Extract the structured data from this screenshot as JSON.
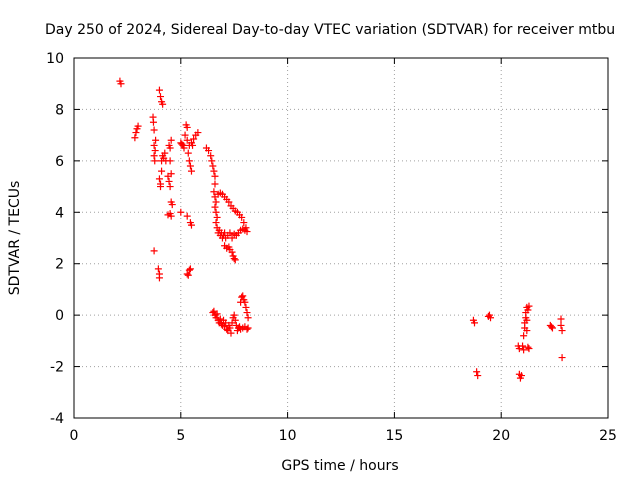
{
  "chart_data": {
    "type": "scatter",
    "title": "Day 250 of 2024, Sidereal Day-to-day VTEC variation (SDTVAR) for receiver mtbu",
    "xlabel": "GPS time / hours",
    "ylabel": "SDTVAR / TECUs",
    "xlim": [
      0,
      25
    ],
    "ylim": [
      -4,
      10
    ],
    "xticks": [
      0,
      5,
      10,
      15,
      20,
      25
    ],
    "yticks": [
      -4,
      -2,
      0,
      2,
      4,
      6,
      8,
      10
    ],
    "grid": true,
    "marker": "plus",
    "color": "#ff0000",
    "series": [
      {
        "name": "SDTVAR",
        "points": [
          [
            2.15,
            9.1
          ],
          [
            2.2,
            9.0
          ],
          [
            2.85,
            6.9
          ],
          [
            2.9,
            7.1
          ],
          [
            2.95,
            7.25
          ],
          [
            3.0,
            7.35
          ],
          [
            3.7,
            7.7
          ],
          [
            3.72,
            7.5
          ],
          [
            3.75,
            7.2
          ],
          [
            3.75,
            6.6
          ],
          [
            3.75,
            6.2
          ],
          [
            3.78,
            6.0
          ],
          [
            3.8,
            6.4
          ],
          [
            3.82,
            6.8
          ],
          [
            3.75,
            2.5
          ],
          [
            3.95,
            1.8
          ],
          [
            4.0,
            1.6
          ],
          [
            4.0,
            1.45
          ],
          [
            4.0,
            8.75
          ],
          [
            4.05,
            8.5
          ],
          [
            4.1,
            8.3
          ],
          [
            4.15,
            8.2
          ],
          [
            4.0,
            5.3
          ],
          [
            4.05,
            5.1
          ],
          [
            4.05,
            5.0
          ],
          [
            4.1,
            5.6
          ],
          [
            4.1,
            6.0
          ],
          [
            4.15,
            6.2
          ],
          [
            4.2,
            6.1
          ],
          [
            4.25,
            6.3
          ],
          [
            4.3,
            6.0
          ],
          [
            4.4,
            5.4
          ],
          [
            4.45,
            5.2
          ],
          [
            4.5,
            5.0
          ],
          [
            4.55,
            5.5
          ],
          [
            4.5,
            6.0
          ],
          [
            4.5,
            6.5
          ],
          [
            4.55,
            6.8
          ],
          [
            4.45,
            6.6
          ],
          [
            4.4,
            3.9
          ],
          [
            4.5,
            3.95
          ],
          [
            4.55,
            3.85
          ],
          [
            4.55,
            4.4
          ],
          [
            4.6,
            4.3
          ],
          [
            5.0,
            6.7
          ],
          [
            5.05,
            6.65
          ],
          [
            5.1,
            6.6
          ],
          [
            5.15,
            6.5
          ],
          [
            5.2,
            7.0
          ],
          [
            5.25,
            7.4
          ],
          [
            5.3,
            7.3
          ],
          [
            5.3,
            6.8
          ],
          [
            5.35,
            6.3
          ],
          [
            5.4,
            6.0
          ],
          [
            5.45,
            5.8
          ],
          [
            5.5,
            5.6
          ],
          [
            5.4,
            6.6
          ],
          [
            5.5,
            6.7
          ],
          [
            5.55,
            6.6
          ],
          [
            5.0,
            4.0
          ],
          [
            5.3,
            3.85
          ],
          [
            5.45,
            3.6
          ],
          [
            5.5,
            3.5
          ],
          [
            5.3,
            1.6
          ],
          [
            5.35,
            1.55
          ],
          [
            5.4,
            1.75
          ],
          [
            5.45,
            1.8
          ],
          [
            5.6,
            6.85
          ],
          [
            5.7,
            7.0
          ],
          [
            5.8,
            7.1
          ],
          [
            6.2,
            6.5
          ],
          [
            6.3,
            6.4
          ],
          [
            6.4,
            6.2
          ],
          [
            6.45,
            6.0
          ],
          [
            6.5,
            5.8
          ],
          [
            6.55,
            5.6
          ],
          [
            6.6,
            5.4
          ],
          [
            6.6,
            5.1
          ],
          [
            6.55,
            4.8
          ],
          [
            6.6,
            4.6
          ],
          [
            6.65,
            4.4
          ],
          [
            6.6,
            4.2
          ],
          [
            6.65,
            4.0
          ],
          [
            6.7,
            3.8
          ],
          [
            6.65,
            3.6
          ],
          [
            6.7,
            3.4
          ],
          [
            6.75,
            3.2
          ],
          [
            6.8,
            3.3
          ],
          [
            6.85,
            3.1
          ],
          [
            6.9,
            3.2
          ],
          [
            6.95,
            3.0
          ],
          [
            7.0,
            3.1
          ],
          [
            7.05,
            3.2
          ],
          [
            7.1,
            3.0
          ],
          [
            7.2,
            3.1
          ],
          [
            7.3,
            3.2
          ],
          [
            7.4,
            3.0
          ],
          [
            7.5,
            3.15
          ],
          [
            7.6,
            3.1
          ],
          [
            7.7,
            3.2
          ],
          [
            7.8,
            3.3
          ],
          [
            7.9,
            3.35
          ],
          [
            8.0,
            3.3
          ],
          [
            8.1,
            3.25
          ],
          [
            6.75,
            4.7
          ],
          [
            6.85,
            4.75
          ],
          [
            6.95,
            4.7
          ],
          [
            7.05,
            4.6
          ],
          [
            7.15,
            4.5
          ],
          [
            7.25,
            4.4
          ],
          [
            7.35,
            4.25
          ],
          [
            7.45,
            4.15
          ],
          [
            7.55,
            4.05
          ],
          [
            7.65,
            4.0
          ],
          [
            7.75,
            3.9
          ],
          [
            7.85,
            3.8
          ],
          [
            7.95,
            3.6
          ],
          [
            8.05,
            3.4
          ],
          [
            7.05,
            2.7
          ],
          [
            7.15,
            2.6
          ],
          [
            7.25,
            2.65
          ],
          [
            7.3,
            2.55
          ],
          [
            7.4,
            2.45
          ],
          [
            7.45,
            2.3
          ],
          [
            7.5,
            2.2
          ],
          [
            7.55,
            2.15
          ],
          [
            6.5,
            0.1
          ],
          [
            6.55,
            0.15
          ],
          [
            6.6,
            0.0
          ],
          [
            6.65,
            -0.1
          ],
          [
            6.7,
            0.05
          ],
          [
            6.75,
            -0.2
          ],
          [
            6.8,
            -0.3
          ],
          [
            6.85,
            -0.15
          ],
          [
            6.9,
            -0.35
          ],
          [
            6.95,
            -0.4
          ],
          [
            7.0,
            -0.2
          ],
          [
            7.05,
            -0.45
          ],
          [
            7.1,
            -0.3
          ],
          [
            7.15,
            -0.55
          ],
          [
            7.2,
            -0.6
          ],
          [
            7.25,
            -0.4
          ],
          [
            7.3,
            -0.5
          ],
          [
            7.35,
            -0.7
          ],
          [
            7.4,
            -0.3
          ],
          [
            7.45,
            -0.1
          ],
          [
            7.5,
            0.0
          ],
          [
            7.55,
            -0.2
          ],
          [
            7.6,
            -0.4
          ],
          [
            7.65,
            -0.6
          ],
          [
            7.7,
            -0.5
          ],
          [
            7.75,
            -0.45
          ],
          [
            7.8,
            -0.55
          ],
          [
            7.9,
            -0.5
          ],
          [
            8.0,
            -0.45
          ],
          [
            8.1,
            -0.55
          ],
          [
            8.15,
            -0.5
          ],
          [
            7.8,
            0.5
          ],
          [
            7.85,
            0.7
          ],
          [
            7.9,
            0.75
          ],
          [
            7.95,
            0.6
          ],
          [
            8.0,
            0.5
          ],
          [
            8.05,
            0.3
          ],
          [
            8.1,
            0.1
          ],
          [
            8.15,
            -0.1
          ],
          [
            18.7,
            -0.2
          ],
          [
            18.75,
            -0.3
          ],
          [
            18.85,
            -2.2
          ],
          [
            18.9,
            -2.35
          ],
          [
            19.4,
            -0.05
          ],
          [
            19.45,
            0.0
          ],
          [
            19.5,
            -0.1
          ],
          [
            20.8,
            -1.2
          ],
          [
            20.85,
            -1.3
          ],
          [
            20.85,
            -2.3
          ],
          [
            20.9,
            -2.45
          ],
          [
            20.95,
            -2.35
          ],
          [
            21.0,
            -1.2
          ],
          [
            21.05,
            -1.35
          ],
          [
            21.05,
            -0.8
          ],
          [
            21.1,
            -0.5
          ],
          [
            21.1,
            -0.3
          ],
          [
            21.15,
            -0.1
          ],
          [
            21.15,
            0.1
          ],
          [
            21.2,
            -0.6
          ],
          [
            21.2,
            -0.2
          ],
          [
            21.25,
            0.2
          ],
          [
            21.25,
            -1.25
          ],
          [
            21.3,
            -1.3
          ],
          [
            21.2,
            0.3
          ],
          [
            21.3,
            0.35
          ],
          [
            22.3,
            -0.4
          ],
          [
            22.35,
            -0.45
          ],
          [
            22.4,
            -0.5
          ],
          [
            22.8,
            -0.15
          ],
          [
            22.8,
            -0.4
          ],
          [
            22.85,
            -0.6
          ],
          [
            22.85,
            -1.65
          ]
        ]
      }
    ]
  }
}
